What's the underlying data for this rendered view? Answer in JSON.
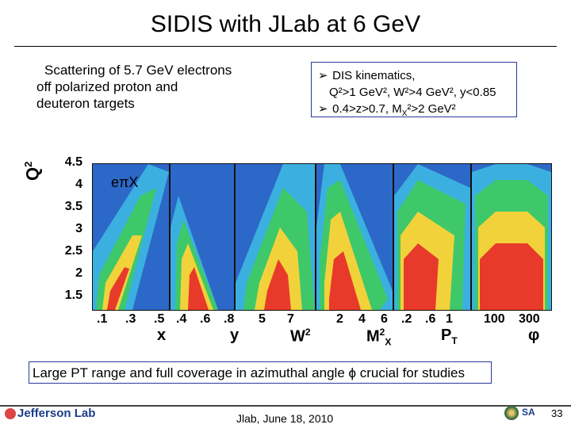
{
  "title": "SIDIS  with JLab at 6 GeV",
  "description_lines": [
    "Scattering of 5.7 GeV electrons",
    "off  polarized proton and",
    "deuteron  targets"
  ],
  "kinematics": {
    "line1": "DIS kinematics,",
    "line2": "Q²>1 GeV²,  W²>4 GeV²,  y<0.85",
    "line3": "0.4>z>0.7, M",
    "line3_sub": "X",
    "line3_tail": "²>2 GeV²"
  },
  "plot": {
    "y_label": "Q",
    "y_label_sup": "2",
    "y_ticks": [
      "4.5",
      "4",
      "3.5",
      "3",
      "2.5",
      "2",
      "1.5"
    ],
    "reaction": "eπX",
    "panels": [
      {
        "label": "x",
        "ticks": [
          ".1",
          ".3",
          ".5"
        ]
      },
      {
        "label": "y",
        "ticks": [
          ".4",
          ".6",
          ".8"
        ]
      },
      {
        "label": "W",
        "label_sup": "2",
        "ticks": [
          "5",
          "7"
        ]
      },
      {
        "label": "M",
        "label_sub": "X",
        "label_sup": "2",
        "ticks": [
          "2",
          "4",
          "6"
        ]
      },
      {
        "label": "P",
        "label_sub": "T",
        "ticks": [
          ".2",
          ".6",
          "1"
        ]
      },
      {
        "label": "φ",
        "ticks": [
          "100",
          "300"
        ]
      }
    ],
    "colors": {
      "background": "#2c68c8",
      "low": "#3bb0e0",
      "mid": "#3ec86a",
      "high": "#f2d23a",
      "peak": "#e83a2a"
    }
  },
  "bottom_note": "Large PT range and full coverage in azimuthal angle ϕ crucial for studies",
  "footer": {
    "logo": "Jefferson Lab",
    "date": "Jlab, June 18, 2010",
    "page": "33",
    "org": "SA"
  }
}
